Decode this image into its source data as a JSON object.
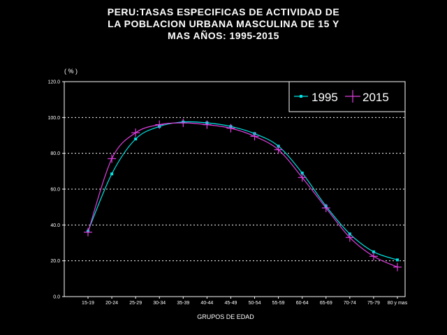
{
  "chart_data": {
    "type": "line",
    "title_lines": [
      "PERU:TASAS ESPECIFICAS DE ACTIVIDAD DE",
      "LA POBLACION URBANA MASCULINA DE 15 Y",
      "MAS AÑOS: 1995-2015"
    ],
    "ylabel": "( % )",
    "xlabel": "GRUPOS DE EDAD",
    "ylim": [
      0,
      120
    ],
    "yticks": [
      0,
      20,
      40,
      60,
      80,
      100,
      120
    ],
    "ytick_labels": [
      "0.0",
      "20.0",
      "40.0",
      "60.0",
      "80.0",
      "100.0",
      "120.0"
    ],
    "grid": "horizontal dotted",
    "legend_position": "top-right",
    "categories": [
      "15-19",
      "20-24",
      "25-29",
      "30-34",
      "35-39",
      "40-44",
      "45-49",
      "50-54",
      "55-59",
      "60-64",
      "65-69",
      "70-74",
      "75-79",
      "80 y mas"
    ],
    "series": [
      {
        "name": "1995",
        "color": "#00e5e5",
        "marker": "square",
        "values": [
          36.5,
          68.5,
          88,
          95,
          97.5,
          97,
          95,
          91,
          84,
          69,
          50.5,
          35,
          25,
          20.5
        ]
      },
      {
        "name": "2015",
        "color": "#e040e0",
        "marker": "plus",
        "values": [
          36,
          77,
          91.5,
          96,
          97,
          96,
          94,
          89.5,
          82,
          66.5,
          49.5,
          33,
          22.5,
          16.5
        ]
      }
    ]
  }
}
